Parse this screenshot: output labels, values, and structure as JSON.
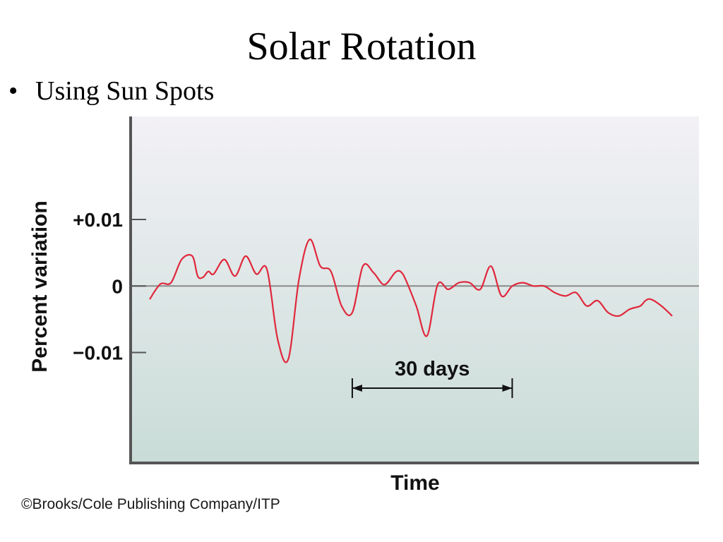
{
  "slide": {
    "title": "Solar Rotation",
    "bullet_symbol": "•",
    "bullet_text": "Using Sun Spots",
    "credit": "©Brooks/Cole Publishing Company/ITP"
  },
  "colors": {
    "line": "#e0283c",
    "axis": "#555555",
    "zero_line": "#8a8a8a",
    "background_top": "#f3f1f6",
    "background_bottom": "#c9dcd7",
    "annotation": "#111111"
  },
  "chart_data": {
    "type": "line",
    "title": "",
    "xlabel": "Time",
    "ylabel": "Percent variation",
    "y_ticks": [
      {
        "value": 0.01,
        "label": "+0.01"
      },
      {
        "value": 0,
        "label": "0"
      },
      {
        "value": -0.01,
        "label": "−0.01"
      }
    ],
    "ylim": [
      -0.0265,
      0.0255
    ],
    "xlim": [
      0,
      98
    ],
    "grid": false,
    "zero_line": true,
    "x_tick_labels": false,
    "annotation": {
      "text": "30 days",
      "x_start": 38,
      "x_end": 68
    },
    "series": [
      {
        "x": [
          0,
          2,
          4,
          6,
          8,
          9,
          10,
          11,
          12,
          14,
          16,
          18,
          20,
          22,
          24,
          26,
          28,
          30,
          32,
          34,
          36,
          38,
          40,
          42,
          44,
          46,
          47,
          48,
          50,
          52,
          54,
          56,
          58,
          60,
          62,
          64,
          66,
          68,
          70,
          72,
          74,
          76,
          78,
          80,
          82,
          84,
          86,
          88,
          90,
          92,
          93,
          94,
          96,
          98
        ],
        "y": [
          -0.002,
          0.0003,
          0.0005,
          0.004,
          0.0045,
          0.0015,
          0.0013,
          0.0022,
          0.0018,
          0.004,
          0.0015,
          0.0045,
          0.0018,
          0.0025,
          -0.008,
          -0.011,
          0.001,
          0.007,
          0.003,
          0.0022,
          -0.003,
          -0.004,
          0.003,
          0.002,
          0.0002,
          0.002,
          0.0022,
          0.001,
          -0.003,
          -0.0075,
          0.0002,
          -0.0005,
          0.0005,
          0.0005,
          -0.0005,
          0.003,
          -0.0015,
          0.0,
          0.0005,
          0.0,
          0.0,
          -0.001,
          -0.0015,
          -0.001,
          -0.003,
          -0.0022,
          -0.004,
          -0.0045,
          -0.0035,
          -0.003,
          -0.0022,
          -0.002,
          -0.003,
          -0.0045
        ]
      }
    ]
  }
}
